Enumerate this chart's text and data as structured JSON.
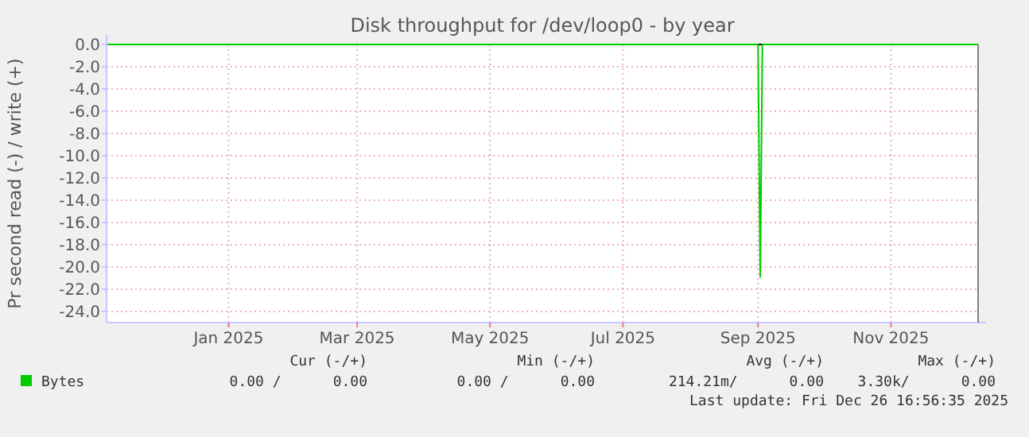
{
  "chart_data": {
    "type": "line",
    "title": "Disk throughput for /dev/loop0 - by year",
    "ylabel": "Pr second read (-) / write (+)",
    "x": [
      "2024-11-21",
      "2025-09-16",
      "2025-09-17",
      "2025-09-18",
      "2025-12-26"
    ],
    "series": [
      {
        "name": "Bytes",
        "color": "#00cc00",
        "values": [
          0,
          0,
          -20.9,
          0,
          0
        ]
      }
    ],
    "xlim": [
      "2024-11-21",
      "2025-12-26"
    ],
    "xticks": [
      {
        "value": "2025-01-16",
        "label": "Jan 2025"
      },
      {
        "value": "2025-03-16",
        "label": "Mar 2025"
      },
      {
        "value": "2025-05-16",
        "label": "May 2025"
      },
      {
        "value": "2025-07-16",
        "label": "Jul 2025"
      },
      {
        "value": "2025-09-16",
        "label": "Sep 2025"
      },
      {
        "value": "2025-11-16",
        "label": "Nov 2025"
      }
    ],
    "ylim": [
      -25,
      0
    ],
    "yticks": [
      {
        "value": 0,
        "label": "0.0"
      },
      {
        "value": -2,
        "label": "-2.0"
      },
      {
        "value": -4,
        "label": "-4.0"
      },
      {
        "value": -6,
        "label": "-6.0"
      },
      {
        "value": -8,
        "label": "-8.0"
      },
      {
        "value": -10,
        "label": "-10.0"
      },
      {
        "value": -12,
        "label": "-12.0"
      },
      {
        "value": -14,
        "label": "-14.0"
      },
      {
        "value": -16,
        "label": "-16.0"
      },
      {
        "value": -18,
        "label": "-18.0"
      },
      {
        "value": -20,
        "label": "-20.0"
      },
      {
        "value": -22,
        "label": "-22.0"
      },
      {
        "value": -24,
        "label": "-24.0"
      }
    ],
    "ref_lines": [
      {
        "axis": "y",
        "value": 0,
        "color": "#000000"
      }
    ],
    "grid": true,
    "legend": "bottom",
    "marker": "none",
    "line_style": "solid",
    "annotations": [
      "Cur (-/+)",
      "Min (-/+)",
      "Avg (-/+)",
      "Max (-/+)",
      "0.00 /      0.00",
      "0.00 /      0.00",
      "214.21m/      0.00",
      "3.30k/      0.00",
      "Last update: Fri Dec 26 16:56:35 2025"
    ]
  }
}
